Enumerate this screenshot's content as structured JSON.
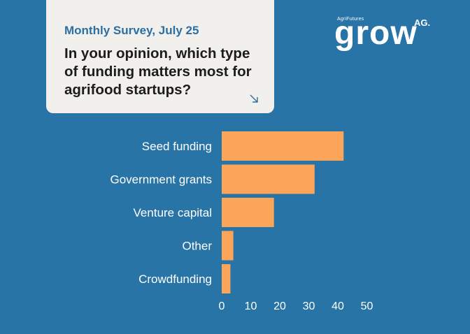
{
  "card": {
    "subtitle": "Monthly Survey, July 25",
    "question": "In your opinion, which type of funding matters most for agrifood startups?",
    "arrow_icon": "arrow-down-right-icon"
  },
  "logo": {
    "small_text": "AgriFutures",
    "main_text": "grow",
    "suffix": "AG."
  },
  "colors": {
    "background": "#2874a6",
    "bar": "#fba55a",
    "card": "#f1f0ec",
    "subtitle": "#2c6fa3"
  },
  "chart_data": {
    "type": "bar",
    "orientation": "horizontal",
    "categories": [
      "Seed funding",
      "Government grants",
      "Venture capital",
      "Other",
      "Crowdfunding"
    ],
    "values": [
      42,
      32,
      18,
      4,
      3
    ],
    "xlim": [
      0,
      50
    ],
    "xticks": [
      0,
      10,
      20,
      30,
      40,
      50
    ],
    "grid": false,
    "legend": "none"
  }
}
